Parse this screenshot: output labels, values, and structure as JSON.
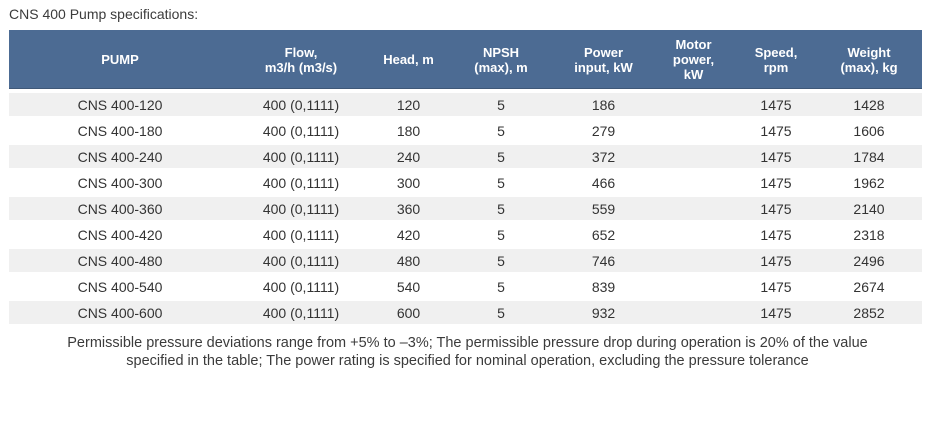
{
  "page": {
    "title": "CNS 400 Pump specifications:"
  },
  "table": {
    "columns": [
      {
        "key": "pump",
        "label": "PUMP"
      },
      {
        "key": "flow",
        "label": "Flow,\nm3/h (m3/s)"
      },
      {
        "key": "head",
        "label": "Head, m"
      },
      {
        "key": "npsh",
        "label": "NPSH\n(max), m"
      },
      {
        "key": "power_input",
        "label": "Power\ninput, kW"
      },
      {
        "key": "motor_power",
        "label": "Motor\npower,\nkW"
      },
      {
        "key": "speed",
        "label": "Speed,\nrpm"
      },
      {
        "key": "weight",
        "label": "Weight\n(max), kg"
      }
    ],
    "rows": [
      {
        "pump": "CNS 400-120",
        "flow": "400 (0,1111)",
        "head": "120",
        "npsh": "5",
        "power_input": "186",
        "motor_power": "",
        "speed": "1475",
        "weight": "1428"
      },
      {
        "pump": "CNS 400-180",
        "flow": "400 (0,1111)",
        "head": "180",
        "npsh": "5",
        "power_input": "279",
        "motor_power": "",
        "speed": "1475",
        "weight": "1606"
      },
      {
        "pump": "CNS 400-240",
        "flow": "400 (0,1111)",
        "head": "240",
        "npsh": "5",
        "power_input": "372",
        "motor_power": "",
        "speed": "1475",
        "weight": "1784"
      },
      {
        "pump": "CNS 400-300",
        "flow": "400 (0,1111)",
        "head": "300",
        "npsh": "5",
        "power_input": "466",
        "motor_power": "",
        "speed": "1475",
        "weight": "1962"
      },
      {
        "pump": "CNS 400-360",
        "flow": "400 (0,1111)",
        "head": "360",
        "npsh": "5",
        "power_input": "559",
        "motor_power": "",
        "speed": "1475",
        "weight": "2140"
      },
      {
        "pump": "CNS 400-420",
        "flow": "400 (0,1111)",
        "head": "420",
        "npsh": "5",
        "power_input": "652",
        "motor_power": "",
        "speed": "1475",
        "weight": "2318"
      },
      {
        "pump": "CNS 400-480",
        "flow": "400 (0,1111)",
        "head": "480",
        "npsh": "5",
        "power_input": "746",
        "motor_power": "",
        "speed": "1475",
        "weight": "2496"
      },
      {
        "pump": "CNS 400-540",
        "flow": "400 (0,1111)",
        "head": "540",
        "npsh": "5",
        "power_input": "839",
        "motor_power": "",
        "speed": "1475",
        "weight": "2674"
      },
      {
        "pump": "CNS 400-600",
        "flow": "400 (0,1111)",
        "head": "600",
        "npsh": "5",
        "power_input": "932",
        "motor_power": "",
        "speed": "1475",
        "weight": "2852"
      }
    ]
  },
  "footer": {
    "note": "Permissible pressure deviations range from +5% to –3%; The permissible pressure drop during operation is 20% of the value\nspecified in the table; The power rating is specified for nominal operation, excluding the pressure tolerance"
  },
  "colors": {
    "header_bg": "#4c6b93",
    "header_edge": "#3f5878",
    "row_alt_bg": "#f0f0f0",
    "text": "#333333",
    "muted_text": "#3b3b3b"
  }
}
